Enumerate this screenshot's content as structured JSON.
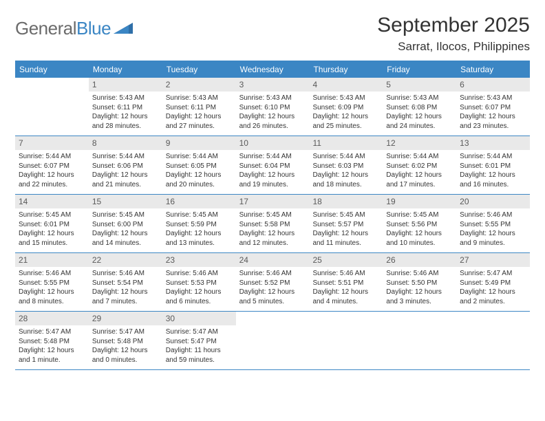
{
  "logo": {
    "part1": "General",
    "part2": "Blue"
  },
  "title": "September 2025",
  "location": "Sarrat, Ilocos, Philippines",
  "colors": {
    "accent": "#3b86c4",
    "header_text": "#ffffff",
    "daynum_bg": "#e9e9e9",
    "daynum_text": "#5a5a5a",
    "body_text": "#333333",
    "logo_gray": "#6b6b6b"
  },
  "day_headers": [
    "Sunday",
    "Monday",
    "Tuesday",
    "Wednesday",
    "Thursday",
    "Friday",
    "Saturday"
  ],
  "weeks": [
    [
      {
        "n": "",
        "sr": "",
        "ss": "",
        "dl": ""
      },
      {
        "n": "1",
        "sr": "Sunrise: 5:43 AM",
        "ss": "Sunset: 6:11 PM",
        "dl": "Daylight: 12 hours and 28 minutes."
      },
      {
        "n": "2",
        "sr": "Sunrise: 5:43 AM",
        "ss": "Sunset: 6:11 PM",
        "dl": "Daylight: 12 hours and 27 minutes."
      },
      {
        "n": "3",
        "sr": "Sunrise: 5:43 AM",
        "ss": "Sunset: 6:10 PM",
        "dl": "Daylight: 12 hours and 26 minutes."
      },
      {
        "n": "4",
        "sr": "Sunrise: 5:43 AM",
        "ss": "Sunset: 6:09 PM",
        "dl": "Daylight: 12 hours and 25 minutes."
      },
      {
        "n": "5",
        "sr": "Sunrise: 5:43 AM",
        "ss": "Sunset: 6:08 PM",
        "dl": "Daylight: 12 hours and 24 minutes."
      },
      {
        "n": "6",
        "sr": "Sunrise: 5:43 AM",
        "ss": "Sunset: 6:07 PM",
        "dl": "Daylight: 12 hours and 23 minutes."
      }
    ],
    [
      {
        "n": "7",
        "sr": "Sunrise: 5:44 AM",
        "ss": "Sunset: 6:07 PM",
        "dl": "Daylight: 12 hours and 22 minutes."
      },
      {
        "n": "8",
        "sr": "Sunrise: 5:44 AM",
        "ss": "Sunset: 6:06 PM",
        "dl": "Daylight: 12 hours and 21 minutes."
      },
      {
        "n": "9",
        "sr": "Sunrise: 5:44 AM",
        "ss": "Sunset: 6:05 PM",
        "dl": "Daylight: 12 hours and 20 minutes."
      },
      {
        "n": "10",
        "sr": "Sunrise: 5:44 AM",
        "ss": "Sunset: 6:04 PM",
        "dl": "Daylight: 12 hours and 19 minutes."
      },
      {
        "n": "11",
        "sr": "Sunrise: 5:44 AM",
        "ss": "Sunset: 6:03 PM",
        "dl": "Daylight: 12 hours and 18 minutes."
      },
      {
        "n": "12",
        "sr": "Sunrise: 5:44 AM",
        "ss": "Sunset: 6:02 PM",
        "dl": "Daylight: 12 hours and 17 minutes."
      },
      {
        "n": "13",
        "sr": "Sunrise: 5:44 AM",
        "ss": "Sunset: 6:01 PM",
        "dl": "Daylight: 12 hours and 16 minutes."
      }
    ],
    [
      {
        "n": "14",
        "sr": "Sunrise: 5:45 AM",
        "ss": "Sunset: 6:01 PM",
        "dl": "Daylight: 12 hours and 15 minutes."
      },
      {
        "n": "15",
        "sr": "Sunrise: 5:45 AM",
        "ss": "Sunset: 6:00 PM",
        "dl": "Daylight: 12 hours and 14 minutes."
      },
      {
        "n": "16",
        "sr": "Sunrise: 5:45 AM",
        "ss": "Sunset: 5:59 PM",
        "dl": "Daylight: 12 hours and 13 minutes."
      },
      {
        "n": "17",
        "sr": "Sunrise: 5:45 AM",
        "ss": "Sunset: 5:58 PM",
        "dl": "Daylight: 12 hours and 12 minutes."
      },
      {
        "n": "18",
        "sr": "Sunrise: 5:45 AM",
        "ss": "Sunset: 5:57 PM",
        "dl": "Daylight: 12 hours and 11 minutes."
      },
      {
        "n": "19",
        "sr": "Sunrise: 5:45 AM",
        "ss": "Sunset: 5:56 PM",
        "dl": "Daylight: 12 hours and 10 minutes."
      },
      {
        "n": "20",
        "sr": "Sunrise: 5:46 AM",
        "ss": "Sunset: 5:55 PM",
        "dl": "Daylight: 12 hours and 9 minutes."
      }
    ],
    [
      {
        "n": "21",
        "sr": "Sunrise: 5:46 AM",
        "ss": "Sunset: 5:55 PM",
        "dl": "Daylight: 12 hours and 8 minutes."
      },
      {
        "n": "22",
        "sr": "Sunrise: 5:46 AM",
        "ss": "Sunset: 5:54 PM",
        "dl": "Daylight: 12 hours and 7 minutes."
      },
      {
        "n": "23",
        "sr": "Sunrise: 5:46 AM",
        "ss": "Sunset: 5:53 PM",
        "dl": "Daylight: 12 hours and 6 minutes."
      },
      {
        "n": "24",
        "sr": "Sunrise: 5:46 AM",
        "ss": "Sunset: 5:52 PM",
        "dl": "Daylight: 12 hours and 5 minutes."
      },
      {
        "n": "25",
        "sr": "Sunrise: 5:46 AM",
        "ss": "Sunset: 5:51 PM",
        "dl": "Daylight: 12 hours and 4 minutes."
      },
      {
        "n": "26",
        "sr": "Sunrise: 5:46 AM",
        "ss": "Sunset: 5:50 PM",
        "dl": "Daylight: 12 hours and 3 minutes."
      },
      {
        "n": "27",
        "sr": "Sunrise: 5:47 AM",
        "ss": "Sunset: 5:49 PM",
        "dl": "Daylight: 12 hours and 2 minutes."
      }
    ],
    [
      {
        "n": "28",
        "sr": "Sunrise: 5:47 AM",
        "ss": "Sunset: 5:48 PM",
        "dl": "Daylight: 12 hours and 1 minute."
      },
      {
        "n": "29",
        "sr": "Sunrise: 5:47 AM",
        "ss": "Sunset: 5:48 PM",
        "dl": "Daylight: 12 hours and 0 minutes."
      },
      {
        "n": "30",
        "sr": "Sunrise: 5:47 AM",
        "ss": "Sunset: 5:47 PM",
        "dl": "Daylight: 11 hours and 59 minutes."
      },
      {
        "n": "",
        "sr": "",
        "ss": "",
        "dl": ""
      },
      {
        "n": "",
        "sr": "",
        "ss": "",
        "dl": ""
      },
      {
        "n": "",
        "sr": "",
        "ss": "",
        "dl": ""
      },
      {
        "n": "",
        "sr": "",
        "ss": "",
        "dl": ""
      }
    ]
  ]
}
